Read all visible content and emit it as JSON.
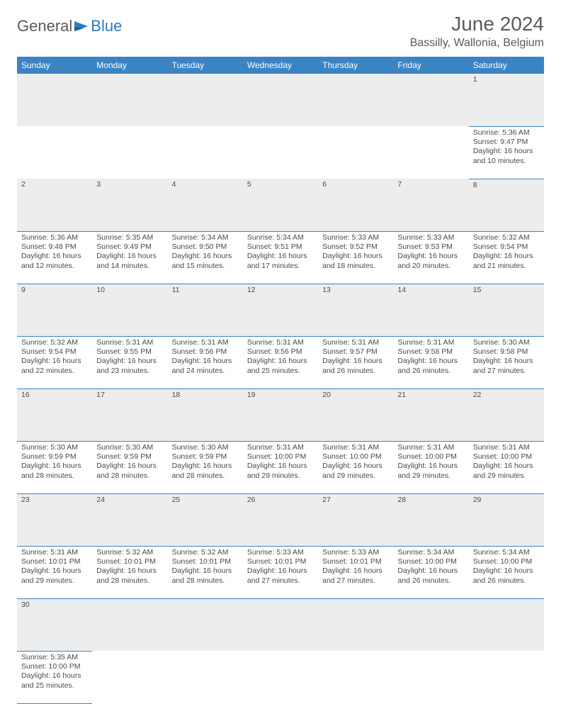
{
  "logo": {
    "part1": "General",
    "part2": "Blue"
  },
  "title": "June 2024",
  "location": "Bassilly, Wallonia, Belgium",
  "dayHeaders": [
    "Sunday",
    "Monday",
    "Tuesday",
    "Wednesday",
    "Thursday",
    "Friday",
    "Saturday"
  ],
  "colors": {
    "headerBg": "#3b84c4",
    "headerText": "#ffffff",
    "daynumBg": "#ededed",
    "cellBorder": "#3b84c4",
    "bodyText": "#4a4a4a",
    "titleText": "#5a5a5a",
    "logoGray": "#5a5a5a",
    "logoBlue": "#2b7bbf"
  },
  "weeks": [
    [
      null,
      null,
      null,
      null,
      null,
      null,
      {
        "n": "1",
        "sr": "5:36 AM",
        "ss": "9:47 PM",
        "dl": "16 hours and 10 minutes."
      }
    ],
    [
      {
        "n": "2",
        "sr": "5:36 AM",
        "ss": "9:48 PM",
        "dl": "16 hours and 12 minutes."
      },
      {
        "n": "3",
        "sr": "5:35 AM",
        "ss": "9:49 PM",
        "dl": "16 hours and 14 minutes."
      },
      {
        "n": "4",
        "sr": "5:34 AM",
        "ss": "9:50 PM",
        "dl": "16 hours and 15 minutes."
      },
      {
        "n": "5",
        "sr": "5:34 AM",
        "ss": "9:51 PM",
        "dl": "16 hours and 17 minutes."
      },
      {
        "n": "6",
        "sr": "5:33 AM",
        "ss": "9:52 PM",
        "dl": "16 hours and 18 minutes."
      },
      {
        "n": "7",
        "sr": "5:33 AM",
        "ss": "9:53 PM",
        "dl": "16 hours and 20 minutes."
      },
      {
        "n": "8",
        "sr": "5:32 AM",
        "ss": "9:54 PM",
        "dl": "16 hours and 21 minutes."
      }
    ],
    [
      {
        "n": "9",
        "sr": "5:32 AM",
        "ss": "9:54 PM",
        "dl": "16 hours and 22 minutes."
      },
      {
        "n": "10",
        "sr": "5:31 AM",
        "ss": "9:55 PM",
        "dl": "16 hours and 23 minutes."
      },
      {
        "n": "11",
        "sr": "5:31 AM",
        "ss": "9:56 PM",
        "dl": "16 hours and 24 minutes."
      },
      {
        "n": "12",
        "sr": "5:31 AM",
        "ss": "9:56 PM",
        "dl": "16 hours and 25 minutes."
      },
      {
        "n": "13",
        "sr": "5:31 AM",
        "ss": "9:57 PM",
        "dl": "16 hours and 26 minutes."
      },
      {
        "n": "14",
        "sr": "5:31 AM",
        "ss": "9:58 PM",
        "dl": "16 hours and 26 minutes."
      },
      {
        "n": "15",
        "sr": "5:30 AM",
        "ss": "9:58 PM",
        "dl": "16 hours and 27 minutes."
      }
    ],
    [
      {
        "n": "16",
        "sr": "5:30 AM",
        "ss": "9:59 PM",
        "dl": "16 hours and 28 minutes."
      },
      {
        "n": "17",
        "sr": "5:30 AM",
        "ss": "9:59 PM",
        "dl": "16 hours and 28 minutes."
      },
      {
        "n": "18",
        "sr": "5:30 AM",
        "ss": "9:59 PM",
        "dl": "16 hours and 28 minutes."
      },
      {
        "n": "19",
        "sr": "5:31 AM",
        "ss": "10:00 PM",
        "dl": "16 hours and 29 minutes."
      },
      {
        "n": "20",
        "sr": "5:31 AM",
        "ss": "10:00 PM",
        "dl": "16 hours and 29 minutes."
      },
      {
        "n": "21",
        "sr": "5:31 AM",
        "ss": "10:00 PM",
        "dl": "16 hours and 29 minutes."
      },
      {
        "n": "22",
        "sr": "5:31 AM",
        "ss": "10:00 PM",
        "dl": "16 hours and 29 minutes."
      }
    ],
    [
      {
        "n": "23",
        "sr": "5:31 AM",
        "ss": "10:01 PM",
        "dl": "16 hours and 29 minutes."
      },
      {
        "n": "24",
        "sr": "5:32 AM",
        "ss": "10:01 PM",
        "dl": "16 hours and 28 minutes."
      },
      {
        "n": "25",
        "sr": "5:32 AM",
        "ss": "10:01 PM",
        "dl": "16 hours and 28 minutes."
      },
      {
        "n": "26",
        "sr": "5:33 AM",
        "ss": "10:01 PM",
        "dl": "16 hours and 27 minutes."
      },
      {
        "n": "27",
        "sr": "5:33 AM",
        "ss": "10:01 PM",
        "dl": "16 hours and 27 minutes."
      },
      {
        "n": "28",
        "sr": "5:34 AM",
        "ss": "10:00 PM",
        "dl": "16 hours and 26 minutes."
      },
      {
        "n": "29",
        "sr": "5:34 AM",
        "ss": "10:00 PM",
        "dl": "16 hours and 26 minutes."
      }
    ],
    [
      {
        "n": "30",
        "sr": "5:35 AM",
        "ss": "10:00 PM",
        "dl": "16 hours and 25 minutes."
      },
      null,
      null,
      null,
      null,
      null,
      null
    ]
  ],
  "labels": {
    "sunrise": "Sunrise:",
    "sunset": "Sunset:",
    "daylight": "Daylight:"
  }
}
